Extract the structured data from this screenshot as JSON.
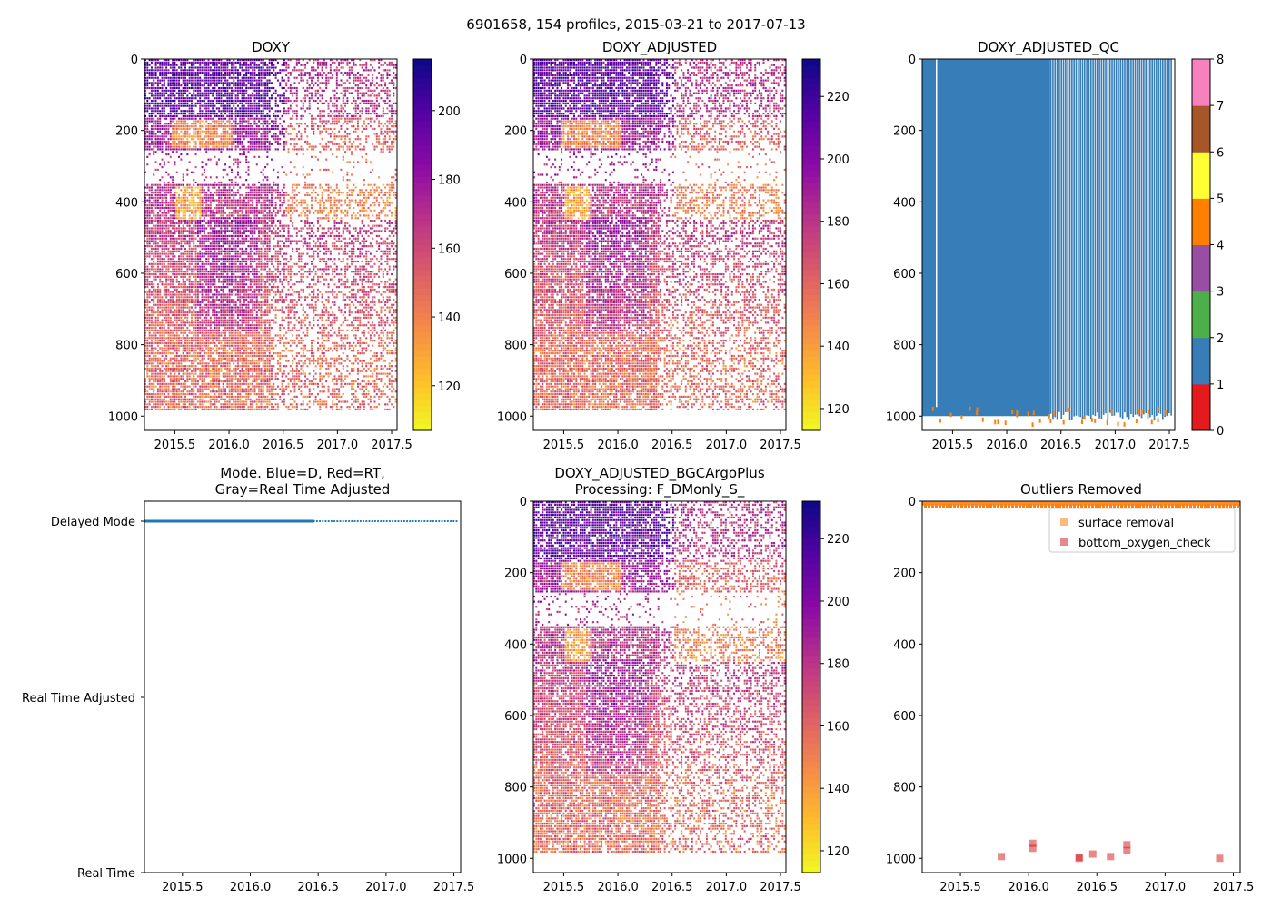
{
  "suptitle": "6901658, 154 profiles, 2015-03-21 to 2017-07-13",
  "x_ticks": [
    "2015.5",
    "2016.0",
    "2016.5",
    "2017.0",
    "2017.5"
  ],
  "x_tick_values": [
    2015.5,
    2016.0,
    2016.5,
    2017.0,
    2017.5
  ],
  "xlim": [
    2015.22,
    2017.55
  ],
  "depth_ticks": [
    "0",
    "200",
    "400",
    "600",
    "800",
    "1000"
  ],
  "depth_tick_values": [
    0,
    200,
    400,
    600,
    800,
    1000
  ],
  "ylim": [
    1040,
    0
  ],
  "chart_data": [
    {
      "type": "heatmap",
      "title": "DOXY",
      "ylabel": "",
      "colormap": "plasma_r",
      "clim": [
        107,
        215
      ],
      "colorbar_ticks": [
        "120",
        "140",
        "160",
        "180",
        "200"
      ],
      "colorbar_tick_values": [
        120,
        140,
        160,
        180,
        200
      ],
      "gap_depths": [
        250,
        350
      ],
      "seed": 11
    },
    {
      "type": "heatmap",
      "title": "DOXY_ADJUSTED",
      "colormap": "plasma_r",
      "clim": [
        113,
        232
      ],
      "colorbar_ticks": [
        "120",
        "140",
        "160",
        "180",
        "200",
        "220"
      ],
      "colorbar_tick_values": [
        120,
        140,
        160,
        180,
        200,
        220
      ],
      "gap_depths": [
        250,
        350
      ],
      "seed": 23
    },
    {
      "type": "heatmap",
      "title": "DOXY_ADJUSTED_QC",
      "colormap": "qc_categorical",
      "clim": [
        0,
        8
      ],
      "colorbar_ticks": [
        "0",
        "1",
        "2",
        "3",
        "4",
        "5",
        "6",
        "7",
        "8"
      ],
      "colorbar_tick_values": [
        0,
        1,
        2,
        3,
        4,
        5,
        6,
        7,
        8
      ],
      "qc_colors": [
        "#e41a1c",
        "#377eb8",
        "#4daf4a",
        "#984ea3",
        "#ff7f00",
        "#ffff33",
        "#a65628",
        "#f781bf",
        "#999999"
      ],
      "dominant_flag": 1,
      "bottom_flag": 4
    },
    {
      "type": "scatter",
      "title_lines": [
        "Mode. Blue=D, Red=RT,",
        "Gray=Real Time Adjusted"
      ],
      "y_categories": [
        "Real Time",
        "Real Time Adjusted",
        "Delayed Mode"
      ],
      "series": [
        {
          "name": "D",
          "color": "#1f77b4",
          "category": "Delayed Mode",
          "x_start": 2015.22,
          "x_end": 2017.53
        }
      ]
    },
    {
      "type": "heatmap",
      "title_lines": [
        "DOXY_ADJUSTED_BGCArgoPlus",
        "Processing: F_DMonly_S_"
      ],
      "colormap": "plasma_r",
      "clim": [
        113,
        232
      ],
      "colorbar_ticks": [
        "120",
        "140",
        "160",
        "180",
        "200",
        "220"
      ],
      "colorbar_tick_values": [
        120,
        140,
        160,
        180,
        200,
        220
      ],
      "gap_depths": [
        250,
        350
      ],
      "seed": 37
    },
    {
      "type": "scatter",
      "title": "Outliers Removed",
      "legend_position": "top-right",
      "series": [
        {
          "name": "surface removal",
          "color": "#ff7f0e",
          "depth": 5,
          "x_start": 2015.22,
          "x_end": 2017.55
        },
        {
          "name": "bottom_oxygen_check",
          "color": "#d62728",
          "x": [
            2015.8,
            2016.03,
            2016.03,
            2016.37,
            2016.37,
            2016.47,
            2016.6,
            2016.72,
            2016.72,
            2017.4
          ],
          "y": [
            995,
            958,
            972,
            997,
            1000,
            988,
            995,
            962,
            978,
            1000
          ]
        }
      ]
    }
  ]
}
